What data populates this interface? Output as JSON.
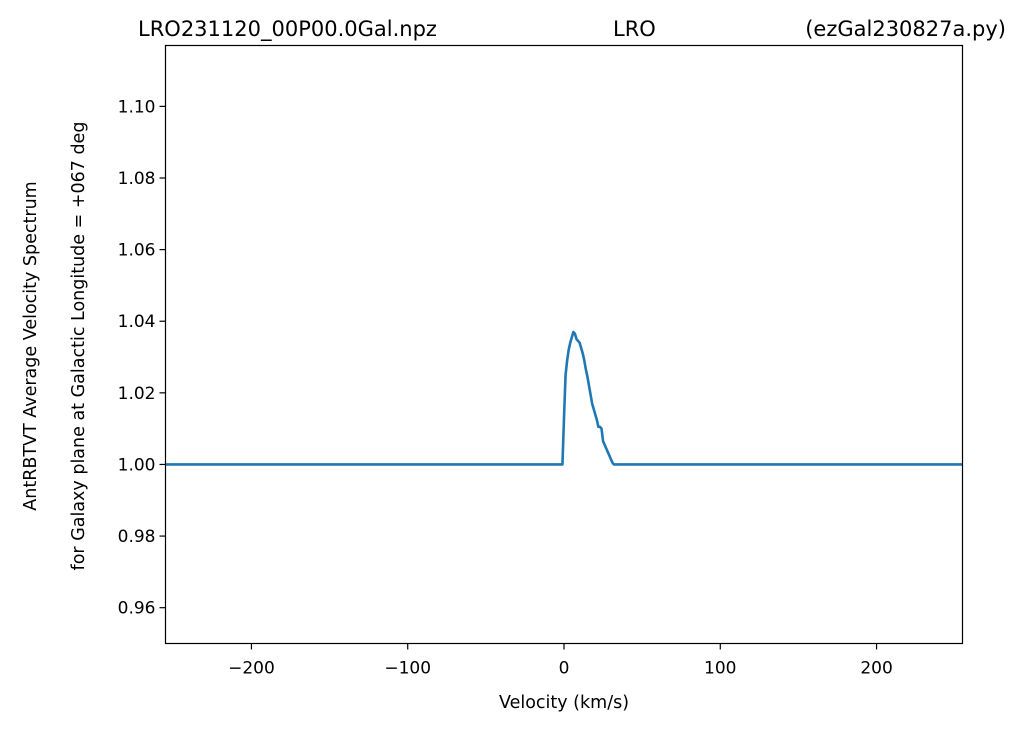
{
  "chart_data": {
    "type": "line",
    "title_left": "LRO231120_00P00.0Gal.npz",
    "title_center": "LRO",
    "title_right": "(ezGal230827a.py)",
    "xlabel": "Velocity (km/s)",
    "ylabel_line1": "AntRBTVT Average Velocity Spectrum",
    "ylabel_line2": "for Galaxy plane at Galactic Longitude = +067 deg",
    "xlim": [
      -255,
      255
    ],
    "ylim": [
      0.95,
      1.117
    ],
    "x_ticks": [
      -200,
      -100,
      0,
      100,
      200
    ],
    "x_tick_labels": [
      "−200",
      "−100",
      "0",
      "100",
      "200"
    ],
    "y_ticks": [
      0.96,
      0.98,
      1.0,
      1.02,
      1.04,
      1.06,
      1.08,
      1.1
    ],
    "y_tick_labels": [
      "0.96",
      "0.98",
      "1.00",
      "1.02",
      "1.04",
      "1.06",
      "1.08",
      "1.10"
    ],
    "grid": false,
    "line_color": "#1f77b4",
    "series": [
      {
        "x": [
          -255,
          -1,
          0,
          1,
          2,
          3,
          4,
          5,
          6,
          7,
          8,
          9,
          10,
          11,
          12,
          13,
          14,
          15,
          16,
          17,
          18,
          19,
          20,
          21,
          22,
          23,
          24,
          25,
          26,
          27,
          28,
          29,
          30,
          31,
          32,
          33,
          34,
          35,
          255
        ],
        "y": [
          1.0,
          1.0,
          1.013,
          1.025,
          1.029,
          1.032,
          1.034,
          1.0355,
          1.037,
          1.0365,
          1.035,
          1.0345,
          1.034,
          1.0325,
          1.031,
          1.029,
          1.0265,
          1.0245,
          1.022,
          1.0195,
          1.017,
          1.0155,
          1.014,
          1.0125,
          1.0105,
          1.0105,
          1.01,
          1.0065,
          1.0055,
          1.0045,
          1.0035,
          1.0025,
          1.0015,
          1.0005,
          1.0,
          1.0,
          1.0,
          1.0,
          1.0
        ]
      }
    ]
  }
}
